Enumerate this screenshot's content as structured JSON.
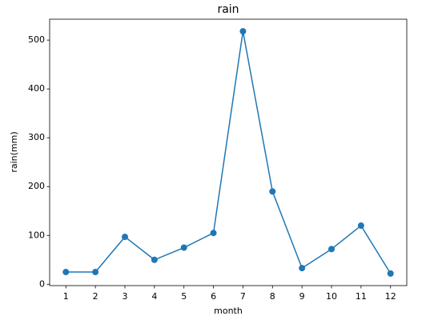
{
  "chart_data": {
    "type": "line",
    "title": "rain",
    "x_label": "month",
    "y_label": "rain(mm)",
    "x": [
      1,
      2,
      3,
      4,
      5,
      6,
      7,
      8,
      9,
      10,
      11,
      12
    ],
    "series": [
      {
        "name": "rain",
        "color": "#1f77b4",
        "values": [
          25,
          25,
          97,
          50,
          75,
          105,
          518,
          190,
          33,
          72,
          120,
          22
        ]
      }
    ],
    "xlim": [
      0.45,
      12.55
    ],
    "xticks": [
      1,
      2,
      3,
      4,
      5,
      6,
      7,
      8,
      9,
      10,
      11,
      12
    ],
    "ylim": [
      -2.8,
      542.8
    ],
    "yticks": [
      0,
      100,
      200,
      300,
      400,
      500
    ],
    "grid": false,
    "markers": true
  }
}
